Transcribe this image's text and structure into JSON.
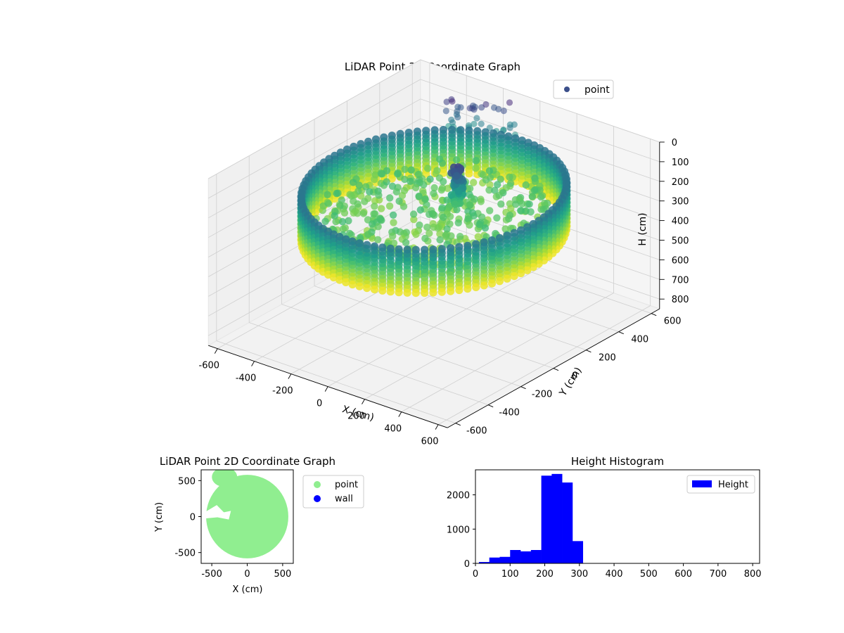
{
  "chart_data": [
    {
      "type": "scatter",
      "projection": "3d",
      "title": "LiDAR Point 3D Coordinate Graph",
      "xlabel": "X (cm)",
      "ylabel": "Y (cm)",
      "zlabel": "H (cm)",
      "legend": {
        "entries": [
          {
            "label": "point",
            "color": "#3b4f8a"
          }
        ],
        "placement": "upper-right"
      },
      "xticks": [
        -600,
        -400,
        -200,
        0,
        200,
        400,
        600
      ],
      "yticks": [
        -600,
        -400,
        -200,
        0,
        200,
        400,
        600
      ],
      "zticks": [
        0,
        100,
        200,
        300,
        400,
        500,
        600,
        700,
        800
      ],
      "xlim": [
        -650,
        650
      ],
      "ylim": [
        -650,
        650
      ],
      "zlim": [
        0,
        850
      ],
      "z_inverted": true,
      "colormap": "viridis",
      "grid": true,
      "room": {
        "wall_radius": 540,
        "wall_top": 150,
        "wall_bottom": 370,
        "floor_height": 290
      }
    },
    {
      "type": "scatter",
      "title": "LiDAR Point 2D Coordinate Graph",
      "xlabel": "X (cm)",
      "ylabel": "Y (cm)",
      "xticks": [
        -500,
        0,
        500
      ],
      "yticks": [
        -500,
        0,
        500
      ],
      "xlim": [
        -650,
        650
      ],
      "ylim": [
        -650,
        650
      ],
      "legend": {
        "entries": [
          {
            "label": "point",
            "color": "#90ee90"
          },
          {
            "label": "wall",
            "color": "#0000ff"
          }
        ],
        "placement": "outside-upper-right"
      },
      "region": {
        "radius": 580,
        "color": "#90ee90"
      }
    },
    {
      "type": "bar",
      "title": "Height Histogram",
      "xlabel": "",
      "ylabel": "",
      "legend": {
        "entries": [
          {
            "label": "Height",
            "color": "#0000ff"
          }
        ],
        "placement": "upper-right"
      },
      "bin_width": 30,
      "bin_edges": [
        10,
        40,
        70,
        100,
        130,
        160,
        190,
        220,
        250,
        280,
        310
      ],
      "counts": [
        40,
        170,
        190,
        390,
        350,
        390,
        2560,
        2610,
        2360,
        650
      ],
      "xlim": [
        0,
        820
      ],
      "ylim": [
        0,
        2730
      ],
      "xticks": [
        0,
        100,
        200,
        300,
        400,
        500,
        600,
        700,
        800
      ],
      "yticks": [
        0,
        1000,
        2000
      ],
      "color": "#0000ff"
    }
  ]
}
